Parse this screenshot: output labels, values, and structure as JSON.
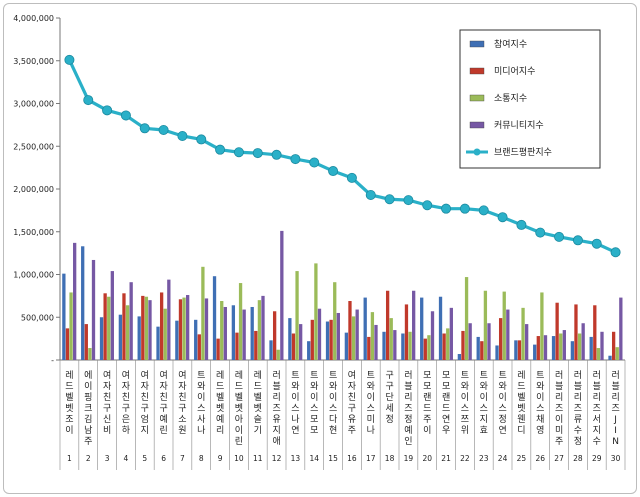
{
  "chart_data": {
    "type": "bar",
    "title": "",
    "xlabel": "",
    "ylabel": "",
    "ylim": [
      0,
      4000000
    ],
    "yticks": [
      "-",
      "500,000",
      "1,000,000",
      "1,500,000",
      "2,000,000",
      "2,500,000",
      "3,000,000",
      "3,500,000",
      "4,000,000"
    ],
    "grid": false,
    "legend_position": "top-right",
    "categories": [
      "레드벨벳조이",
      "에이핑크김남주",
      "여자친구신비",
      "여자친구은하",
      "여자친구엄지",
      "여자친구예린",
      "여자친구소원",
      "트와이스사나",
      "레드벨벳예리",
      "레드벨벳아이린",
      "레드벨벳슬기",
      "러블리즈유지애",
      "트와이스나연",
      "트와이스모모",
      "트와이스다현",
      "여자친구유주",
      "트와이스미나",
      "구구단세정",
      "러블리즈정예인",
      "모모랜드주이",
      "모모랜드연우",
      "트와이스쯔위",
      "트와이스지효",
      "트와이스정연",
      "레드벨벳웬디",
      "트와이스채영",
      "러블리즈이미주",
      "러블리즈류수정",
      "러블리즈서지수",
      "러블리즈JIN"
    ],
    "category_numbers": [
      "1",
      "2",
      "3",
      "4",
      "5",
      "6",
      "7",
      "8",
      "9",
      "10",
      "11",
      "12",
      "13",
      "14",
      "15",
      "16",
      "17",
      "18",
      "19",
      "20",
      "21",
      "22",
      "23",
      "24",
      "25",
      "26",
      "27",
      "28",
      "29",
      "30"
    ],
    "series": [
      {
        "name": "참여지수",
        "kind": "bar",
        "color": "#3f6fb4",
        "values": [
          1010000,
          1330000,
          500000,
          530000,
          510000,
          390000,
          460000,
          470000,
          980000,
          640000,
          620000,
          230000,
          490000,
          220000,
          450000,
          320000,
          730000,
          330000,
          310000,
          730000,
          740000,
          70000,
          270000,
          170000,
          230000,
          180000,
          280000,
          220000,
          270000,
          50000
        ]
      },
      {
        "name": "미디어지수",
        "kind": "bar",
        "color": "#c0392b",
        "values": [
          370000,
          420000,
          780000,
          780000,
          750000,
          790000,
          710000,
          300000,
          250000,
          320000,
          340000,
          570000,
          310000,
          470000,
          470000,
          690000,
          270000,
          810000,
          650000,
          250000,
          310000,
          340000,
          220000,
          490000,
          230000,
          280000,
          670000,
          650000,
          640000,
          330000
        ]
      },
      {
        "name": "소통지수",
        "kind": "bar",
        "color": "#9bbb59",
        "values": [
          790000,
          140000,
          740000,
          640000,
          740000,
          600000,
          730000,
          1090000,
          690000,
          900000,
          700000,
          120000,
          1040000,
          1130000,
          910000,
          510000,
          560000,
          490000,
          330000,
          290000,
          370000,
          970000,
          810000,
          800000,
          610000,
          790000,
          310000,
          310000,
          140000,
          150000
        ]
      },
      {
        "name": "커뮤니티지수",
        "kind": "bar",
        "color": "#7658a4",
        "values": [
          1370000,
          1170000,
          1040000,
          910000,
          700000,
          940000,
          760000,
          720000,
          620000,
          590000,
          750000,
          1510000,
          420000,
          600000,
          550000,
          590000,
          410000,
          350000,
          810000,
          570000,
          610000,
          430000,
          430000,
          590000,
          420000,
          290000,
          350000,
          430000,
          330000,
          730000
        ]
      },
      {
        "name": "브랜드평판지수",
        "kind": "line",
        "color": "#2ab0c8",
        "values": [
          3510000,
          3040000,
          2920000,
          2860000,
          2710000,
          2690000,
          2620000,
          2580000,
          2460000,
          2430000,
          2420000,
          2400000,
          2350000,
          2310000,
          2210000,
          2130000,
          1930000,
          1880000,
          1870000,
          1810000,
          1770000,
          1770000,
          1750000,
          1670000,
          1580000,
          1490000,
          1440000,
          1400000,
          1360000,
          1260000
        ]
      }
    ]
  }
}
